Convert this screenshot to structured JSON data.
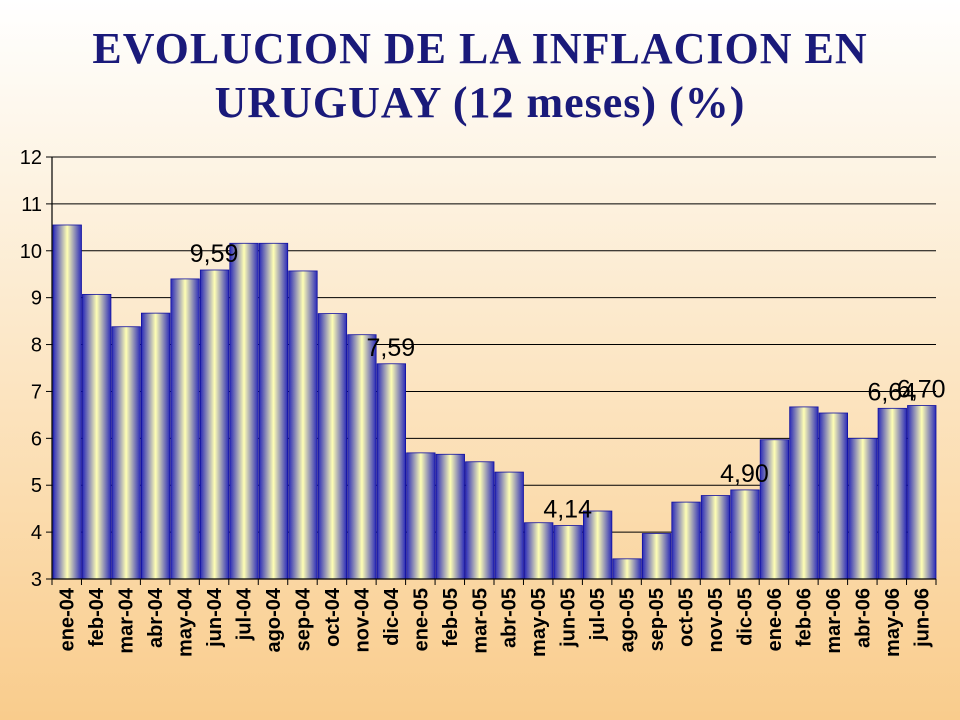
{
  "title_line1": "EVOLUCION DE LA INFLACION EN",
  "title_line2": "URUGUAY (12 meses) (%)",
  "chart_data": {
    "type": "bar",
    "title": "EVOLUCION DE LA INFLACION EN URUGUAY (12 meses) (%)",
    "xlabel": "",
    "ylabel": "",
    "ylim": [
      3,
      12
    ],
    "yticks": [
      3,
      4,
      5,
      6,
      7,
      8,
      9,
      10,
      11,
      12
    ],
    "grid": true,
    "categories": [
      "ene-04",
      "feb-04",
      "mar-04",
      "abr-04",
      "may-04",
      "jun-04",
      "jul-04",
      "ago-04",
      "sep-04",
      "oct-04",
      "nov-04",
      "dic-04",
      "ene-05",
      "feb-05",
      "mar-05",
      "abr-05",
      "may-05",
      "jun-05",
      "jul-05",
      "ago-05",
      "sep-05",
      "oct-05",
      "nov-05",
      "dic-05",
      "ene-06",
      "feb-06",
      "mar-06",
      "abr-06",
      "may-06",
      "jun-06"
    ],
    "values": [
      10.55,
      9.07,
      8.38,
      8.67,
      9.4,
      9.59,
      10.16,
      10.16,
      9.57,
      8.66,
      8.21,
      7.59,
      5.69,
      5.66,
      5.5,
      5.28,
      4.2,
      4.14,
      4.45,
      3.43,
      3.97,
      4.64,
      4.78,
      4.9,
      5.97,
      6.67,
      6.54,
      6.0,
      6.64,
      6.7
    ],
    "data_labels": [
      {
        "category": "jun-04",
        "text": "9,59"
      },
      {
        "category": "dic-04",
        "text": "7,59"
      },
      {
        "category": "jun-05",
        "text": "4,14"
      },
      {
        "category": "dic-05",
        "text": "4,90"
      },
      {
        "category": "may-06",
        "text": "6,64"
      },
      {
        "category": "jun-06",
        "text": "6,70"
      }
    ],
    "colors": {
      "bar_edge": "#1010a0",
      "bar_center": "#ffffb4",
      "bar_side": "#2a2ab8"
    }
  }
}
